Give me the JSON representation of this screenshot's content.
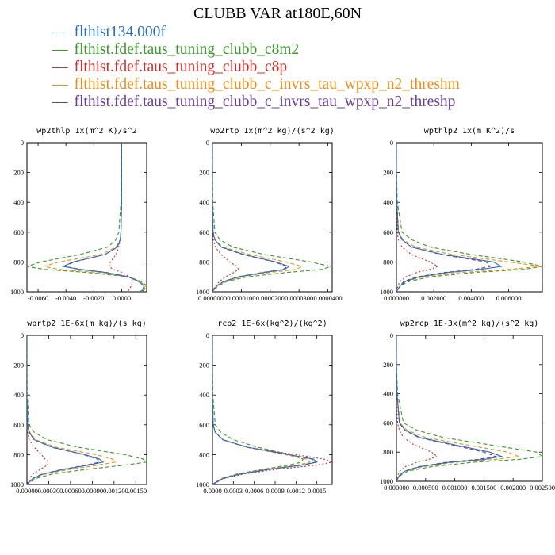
{
  "figure": {
    "title": "CLUBB VAR at180E,60N"
  },
  "legend": [
    {
      "label": "flthist134.000f",
      "color": "#2a6fbf",
      "dash": "solid"
    },
    {
      "label": "flthist.fdef.taus_tuning_clubb_c8m2",
      "color": "#3a9a2a",
      "dash": "dashed"
    },
    {
      "label": "flthist.fdef.taus_tuning_clubb_c8p",
      "color": "#d42a2a",
      "dash": "dotted"
    },
    {
      "label": "flthist.fdef.taus_tuning_clubb_c_invrs_tau_wpxp_n2_threshm",
      "color": "#f08c1a",
      "dash": "dashed"
    },
    {
      "label": "flthist.fdef.taus_tuning_clubb_c_invrs_tau_wpxp_n2_threshp",
      "color": "#6a3d9a",
      "dash": "dashed"
    }
  ],
  "chart_data": [
    {
      "type": "line",
      "title": "wp2thlp  1x(m^2 K)/s^2",
      "xlim": [
        -0.0068,
        0.0018
      ],
      "ylim": [
        0,
        1000
      ],
      "y_inverted": true,
      "xticks": [
        "-0.0060",
        "-0.0040",
        "-0.0020",
        "0.0000"
      ],
      "xtick_values": [
        -0.006,
        -0.004,
        -0.002,
        0.0
      ],
      "yticks": [
        "0",
        "200",
        "400",
        "600",
        "800",
        "1000"
      ],
      "y": [
        0,
        200,
        400,
        600,
        650,
        700,
        750,
        800,
        830,
        850,
        870,
        900,
        930,
        960,
        990,
        1000
      ],
      "series": [
        {
          "values": [
            0.0,
            0.0,
            0.0,
            -5e-05,
            -0.0001,
            -0.0003,
            -0.0012,
            -0.0035,
            -0.0042,
            -0.003,
            -0.0012,
            0.0005,
            0.0012,
            0.0016,
            0.0015,
            0.0013
          ]
        },
        {
          "values": [
            0.0,
            0.0,
            -5e-05,
            -0.0002,
            -0.0004,
            -0.001,
            -0.003,
            -0.0058,
            -0.0068,
            -0.0055,
            -0.0025,
            0.0005,
            0.0014,
            0.0018,
            0.0016,
            0.0014
          ]
        },
        {
          "values": [
            0.0,
            0.0,
            0.0,
            -5e-05,
            -0.0001,
            -0.0002,
            -0.0004,
            -0.0008,
            -0.0009,
            -0.0006,
            0.0,
            0.0006,
            0.0008,
            0.0007,
            0.0005,
            0.0004
          ]
        },
        {
          "values": [
            0.0,
            0.0,
            0.0,
            -5e-05,
            -0.0001,
            -0.0004,
            -0.0015,
            -0.0045,
            -0.0056,
            -0.0045,
            -0.0018,
            0.0005,
            0.0013,
            0.0017,
            0.0016,
            0.0014
          ]
        },
        {
          "values": [
            0.0,
            0.0,
            0.0,
            -5e-05,
            -0.0001,
            -0.0003,
            -0.0012,
            -0.0034,
            -0.0041,
            -0.0029,
            -0.0011,
            0.0005,
            0.0012,
            0.0016,
            0.0015,
            0.0013
          ]
        }
      ]
    },
    {
      "type": "line",
      "title": "wp2rtp  1x(m^2 kg)/(s^2 kg)",
      "xlim": [
        0,
        4.15e-05
      ],
      "ylim": [
        0,
        1000
      ],
      "y_inverted": true,
      "xticks": [
        "0.0000000",
        "0.0000100",
        "0.0000200",
        "0.0000300",
        "0.0000400"
      ],
      "xtick_values": [
        0,
        1e-05,
        2e-05,
        3e-05,
        4e-05
      ],
      "yticks": [
        "0",
        "200",
        "400",
        "600",
        "800",
        "1000"
      ],
      "y": [
        0,
        200,
        400,
        600,
        650,
        700,
        750,
        800,
        830,
        850,
        870,
        900,
        930,
        960,
        990,
        1000
      ],
      "series": [
        {
          "values": [
            0.0,
            0.0,
            0.0,
            2e-07,
            8e-07,
            3e-06,
            1.1e-05,
            2.2e-05,
            2.65e-05,
            2.5e-05,
            1.8e-05,
            9e-06,
            4e-06,
            1.5e-06,
            3e-07,
            0.0
          ]
        },
        {
          "values": [
            0.0,
            0.0,
            1e-07,
            8e-07,
            2.5e-06,
            7e-06,
            1.8e-05,
            3.4e-05,
            4.1e-05,
            3.8e-05,
            2.6e-05,
            1.2e-05,
            5e-06,
            2e-06,
            4e-07,
            0.0
          ]
        },
        {
          "values": [
            0.0,
            0.0,
            0.0,
            1e-07,
            3e-07,
            1e-06,
            3e-06,
            6e-06,
            8.5e-06,
            9e-06,
            7.5e-06,
            4.5e-06,
            2.5e-06,
            1e-06,
            2e-07,
            0.0
          ]
        },
        {
          "values": [
            0.0,
            0.0,
            0.0,
            2e-07,
            9e-07,
            3.5e-06,
            1.3e-05,
            2.55e-05,
            3.1e-05,
            2.9e-05,
            2e-05,
            1e-05,
            4.5e-06,
            1.7e-06,
            3e-07,
            0.0
          ]
        },
        {
          "values": [
            0.0,
            0.0,
            0.0,
            2e-07,
            8e-07,
            3e-06,
            1.05e-05,
            2.15e-05,
            2.6e-05,
            2.45e-05,
            1.75e-05,
            8.8e-06,
            3.9e-06,
            1.4e-06,
            3e-07,
            0.0
          ]
        }
      ]
    },
    {
      "type": "line",
      "title": "wpthlp2  1x(m K^2)/s",
      "xlim": [
        0,
        0.0078
      ],
      "ylim": [
        0,
        1000
      ],
      "y_inverted": true,
      "xticks": [
        "0.000000",
        "0.002000",
        "0.004000",
        "0.006000"
      ],
      "xtick_values": [
        0,
        0.002,
        0.004,
        0.006
      ],
      "yticks": [
        "0",
        "200",
        "400",
        "600",
        "800",
        "1000"
      ],
      "y": [
        0,
        200,
        400,
        600,
        650,
        700,
        750,
        800,
        830,
        850,
        870,
        900,
        930,
        960,
        990,
        1000
      ],
      "series": [
        {
          "values": [
            0.0,
            0.0,
            2e-05,
            0.0001,
            0.0003,
            0.0008,
            0.0025,
            0.0052,
            0.0056,
            0.0045,
            0.0028,
            0.0012,
            0.0005,
            0.0002,
            5e-05,
            0.0
          ]
        },
        {
          "values": [
            0.0,
            0.0,
            5e-05,
            0.0003,
            0.0008,
            0.0018,
            0.004,
            0.0068,
            0.0078,
            0.0068,
            0.0042,
            0.0018,
            0.0007,
            0.0002,
            5e-05,
            0.0
          ]
        },
        {
          "values": [
            0.0,
            0.0,
            1e-05,
            5e-05,
            0.0001,
            0.0003,
            0.0008,
            0.0018,
            0.0022,
            0.0018,
            0.0011,
            0.0005,
            0.0002,
            8e-05,
            2e-05,
            0.0
          ]
        },
        {
          "values": [
            0.0,
            0.0,
            2e-05,
            0.00012,
            0.00035,
            0.001,
            0.003,
            0.006,
            0.0078,
            0.006,
            0.0035,
            0.0014,
            0.0005,
            0.0002,
            5e-05,
            0.0
          ]
        },
        {
          "values": [
            0.0,
            0.0,
            2e-05,
            0.0001,
            0.0003,
            0.0008,
            0.0024,
            0.0048,
            0.005,
            0.0042,
            0.0026,
            0.0011,
            0.0004,
            0.0002,
            5e-05,
            0.0
          ]
        }
      ]
    },
    {
      "type": "line",
      "title": "wprtp2  1E-6x(m kg)/(s kg)",
      "xlim": [
        0,
        0.00165
      ],
      "ylim": [
        0,
        1000
      ],
      "y_inverted": true,
      "xticks": [
        "0.00000",
        "0.00030",
        "0.00060",
        "0.00090",
        "0.00120",
        "0.00150"
      ],
      "xtick_values": [
        0,
        0.0003,
        0.0006,
        0.0009,
        0.0012,
        0.0015
      ],
      "yticks": [
        "0",
        "200",
        "400",
        "600",
        "800",
        "1000"
      ],
      "y": [
        0,
        200,
        400,
        600,
        650,
        700,
        750,
        800,
        830,
        850,
        870,
        900,
        930,
        960,
        990,
        1000
      ],
      "series": [
        {
          "values": [
            0.0,
            0.0,
            0.0,
            1e-05,
            3e-05,
            0.0001,
            0.00035,
            0.0008,
            0.001,
            0.00105,
            0.00085,
            0.0005,
            0.00022,
            8e-05,
            2e-05,
            0.0
          ]
        },
        {
          "values": [
            0.0,
            0.0,
            3e-06,
            3e-05,
            0.0001,
            0.00028,
            0.0007,
            0.00135,
            0.0016,
            0.00165,
            0.00135,
            0.0008,
            0.00035,
            0.00012,
            3e-05,
            0.0
          ]
        },
        {
          "values": [
            0.0,
            0.0,
            0.0,
            3e-06,
            1e-05,
            3e-05,
            0.0001,
            0.0002,
            0.00025,
            0.0003,
            0.00028,
            0.00018,
            8e-05,
            3e-05,
            1e-05,
            0.0
          ]
        },
        {
          "values": [
            0.0,
            0.0,
            0.0,
            1e-05,
            4e-05,
            0.00012,
            0.0004,
            0.00095,
            0.00118,
            0.00122,
            0.00098,
            0.00058,
            0.00025,
            9e-05,
            2e-05,
            0.0
          ]
        },
        {
          "values": [
            0.0,
            0.0,
            0.0,
            1e-05,
            3e-05,
            0.0001,
            0.00034,
            0.00078,
            0.00097,
            0.001,
            0.00082,
            0.00048,
            0.00021,
            7e-05,
            2e-05,
            0.0
          ]
        }
      ]
    },
    {
      "type": "line",
      "title": "rcp2  1E-6x(kg^2)/(kg^2)",
      "xlim": [
        0,
        0.00172
      ],
      "ylim": [
        0,
        1000
      ],
      "y_inverted": true,
      "xticks": [
        "0.0000",
        "0.0003",
        "0.0006",
        "0.0009",
        "0.0012",
        "0.0015"
      ],
      "xtick_values": [
        0,
        0.0003,
        0.0006,
        0.0009,
        0.0012,
        0.0015
      ],
      "yticks": [
        "0",
        "200",
        "400",
        "600",
        "800",
        "1000"
      ],
      "y": [
        0,
        200,
        400,
        600,
        650,
        700,
        750,
        800,
        830,
        850,
        870,
        900,
        930,
        960,
        990,
        1000
      ],
      "series": [
        {
          "values": [
            0.0,
            0.0,
            0.0,
            1e-05,
            4e-05,
            0.00015,
            0.0005,
            0.0011,
            0.00145,
            0.0015,
            0.0013,
            0.0008,
            0.0004,
            0.00015,
            3e-05,
            0.0
          ]
        },
        {
          "values": [
            0.0,
            0.0,
            5e-06,
            4e-05,
            0.00012,
            0.0003,
            0.00065,
            0.0011,
            0.0013,
            0.00128,
            0.0011,
            0.0007,
            0.00035,
            0.00013,
            3e-05,
            0.0
          ]
        },
        {
          "values": [
            0.0,
            0.0,
            0.0,
            1e-05,
            4e-05,
            0.00015,
            0.0005,
            0.0012,
            0.0016,
            0.00172,
            0.0015,
            0.0009,
            0.00045,
            0.00017,
            4e-05,
            0.0
          ]
        },
        {
          "values": [
            0.0,
            0.0,
            0.0,
            1e-05,
            4e-05,
            0.00014,
            0.00048,
            0.00105,
            0.00135,
            0.0014,
            0.00122,
            0.00075,
            0.00038,
            0.00014,
            3e-05,
            0.0
          ]
        },
        {
          "values": [
            0.0,
            0.0,
            0.0,
            1e-05,
            4e-05,
            0.00015,
            0.0005,
            0.0011,
            0.00143,
            0.00148,
            0.00128,
            0.00079,
            0.0004,
            0.00015,
            3e-05,
            0.0
          ]
        }
      ]
    },
    {
      "type": "line",
      "title": "wp2rcp  1E-3x(m^2 kg)/(s^2 kg)",
      "xlim": [
        0,
        0.0025
      ],
      "ylim": [
        0,
        1000
      ],
      "y_inverted": true,
      "xticks": [
        "0.000000",
        "0.000500",
        "0.001000",
        "0.001500",
        "0.002000",
        "0.002500"
      ],
      "xtick_values": [
        0,
        0.0005,
        0.001,
        0.0015,
        0.002,
        0.0025
      ],
      "yticks": [
        "0",
        "200",
        "400",
        "600",
        "800",
        "1000"
      ],
      "y": [
        0,
        200,
        400,
        600,
        650,
        700,
        750,
        800,
        830,
        850,
        870,
        900,
        930,
        960,
        990,
        1000
      ],
      "series": [
        {
          "values": [
            0.0,
            0.0,
            1e-05,
            5e-05,
            0.00015,
            0.0004,
            0.001,
            0.0016,
            0.0018,
            0.0015,
            0.0009,
            0.0004,
            0.00015,
            5e-05,
            1e-05,
            0.0
          ]
        },
        {
          "values": [
            0.0,
            0.0,
            2e-05,
            0.00012,
            0.00035,
            0.0008,
            0.0016,
            0.0024,
            0.0025,
            0.0021,
            0.0013,
            0.0006,
            0.0002,
            7e-05,
            1e-05,
            0.0
          ]
        },
        {
          "values": [
            0.0,
            0.0,
            0.0,
            2e-05,
            5e-05,
            0.00012,
            0.0003,
            0.0006,
            0.0007,
            0.00055,
            0.00035,
            0.00015,
            6e-05,
            2e-05,
            0.0,
            0.0
          ]
        },
        {
          "values": [
            0.0,
            0.0,
            1e-05,
            6e-05,
            0.00018,
            0.0005,
            0.0012,
            0.0019,
            0.0021,
            0.0017,
            0.001,
            0.00045,
            0.00016,
            5e-05,
            1e-05,
            0.0
          ]
        },
        {
          "values": [
            0.0,
            0.0,
            1e-05,
            5e-05,
            0.00014,
            0.00038,
            0.00095,
            0.0015,
            0.0017,
            0.0014,
            0.00085,
            0.00038,
            0.00014,
            5e-05,
            1e-05,
            0.0
          ]
        }
      ]
    }
  ]
}
